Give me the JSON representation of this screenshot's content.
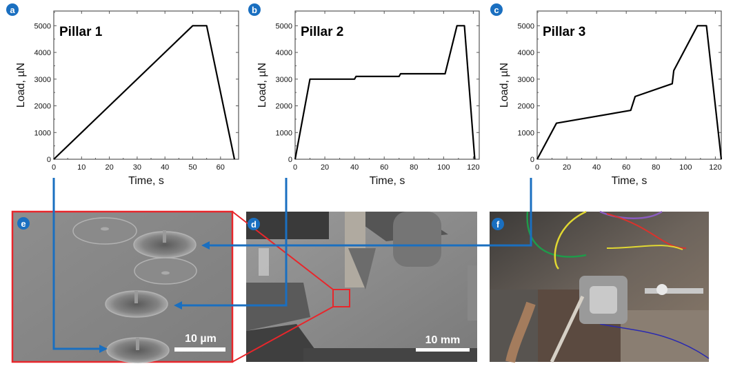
{
  "figure": {
    "panel_labels": [
      "a",
      "b",
      "c",
      "d",
      "e",
      "f"
    ],
    "colors": {
      "accent_blue": "#1a6fc0",
      "highlight_red": "#e8262b",
      "curve": "#000000"
    },
    "scale_bars": {
      "e": "10 µm",
      "d": "10 mm"
    },
    "photos": {
      "d": "SEM image",
      "e": "SEM image",
      "f": "photograph"
    }
  },
  "chart_data": [
    {
      "type": "line",
      "title": "Pillar 1",
      "xlabel": "Time, s",
      "ylabel": "Load, µN",
      "xlim": [
        0,
        66.5
      ],
      "ylim": [
        0,
        5550
      ],
      "xticks": [
        0,
        10,
        20,
        30,
        40,
        50,
        60
      ],
      "yticks": [
        0,
        1000,
        2000,
        3000,
        4000,
        5000
      ],
      "grid": false,
      "x": [
        0,
        50,
        55,
        65
      ],
      "y": [
        0,
        5000,
        5000,
        0
      ]
    },
    {
      "type": "line",
      "title": "Pillar 2",
      "xlabel": "Time, s",
      "ylabel": "Load, µN",
      "xlim": [
        0,
        124
      ],
      "ylim": [
        0,
        5550
      ],
      "xticks": [
        0,
        20,
        40,
        60,
        80,
        100,
        120
      ],
      "yticks": [
        0,
        1000,
        2000,
        3000,
        4000,
        5000
      ],
      "grid": false,
      "x": [
        0,
        10,
        40,
        41,
        70,
        71,
        101,
        109,
        114,
        121
      ],
      "y": [
        0,
        3000,
        3000,
        3100,
        3100,
        3200,
        3200,
        5000,
        5000,
        0
      ]
    },
    {
      "type": "line",
      "title": "Pillar 3",
      "xlabel": "Time, s",
      "ylabel": "Load, µN",
      "xlim": [
        0,
        124
      ],
      "ylim": [
        0,
        5550
      ],
      "xticks": [
        0,
        20,
        40,
        60,
        80,
        100,
        120
      ],
      "yticks": [
        0,
        1000,
        2000,
        3000,
        4000,
        5000
      ],
      "grid": false,
      "x": [
        0,
        13,
        63,
        66,
        91,
        92,
        108,
        114,
        124
      ],
      "y": [
        0,
        1350,
        1830,
        2350,
        2830,
        3320,
        5000,
        5000,
        0
      ]
    }
  ]
}
